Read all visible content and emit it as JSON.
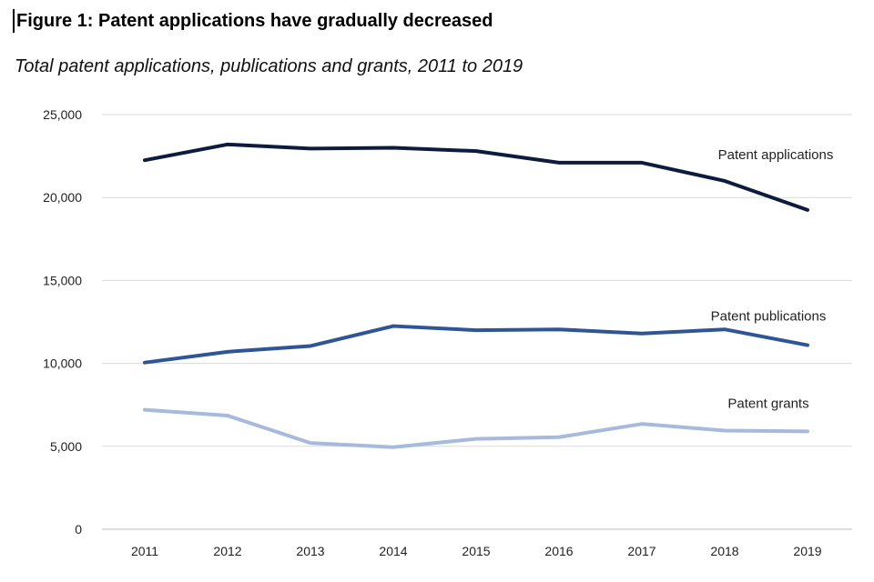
{
  "title": "Figure 1: Patent applications have gradually decreased",
  "subtitle": "Total patent applications, publications and grants, 2011 to 2019",
  "chart_data": {
    "type": "line",
    "title": "Figure 1: Patent applications have gradually decreased",
    "subtitle": "Total patent applications, publications and grants, 2011 to 2019",
    "xlabel": "",
    "ylabel": "",
    "ylim": [
      0,
      25000
    ],
    "yticks": [
      0,
      5000,
      10000,
      15000,
      20000,
      25000
    ],
    "ytick_labels": [
      "0",
      "5,000",
      "10,000",
      "15,000",
      "20,000",
      "25,000"
    ],
    "grid": true,
    "legend": "inline labels at right end of each line",
    "x": [
      "2011",
      "2012",
      "2013",
      "2014",
      "2015",
      "2016",
      "2017",
      "2018",
      "2019"
    ],
    "series": [
      {
        "name": "Patent applications",
        "color": "#0d1b3e",
        "values": [
          22250,
          23200,
          22950,
          23000,
          22800,
          22100,
          22100,
          21000,
          19250
        ]
      },
      {
        "name": "Patent publications",
        "color": "#2f5597",
        "values": [
          10050,
          10700,
          11050,
          12250,
          12000,
          12050,
          11800,
          12050,
          11100
        ]
      },
      {
        "name": "Patent grants",
        "color": "#a7b9dc",
        "values": [
          7200,
          6850,
          5200,
          4950,
          5450,
          5550,
          6350,
          5950,
          5900
        ]
      }
    ]
  }
}
